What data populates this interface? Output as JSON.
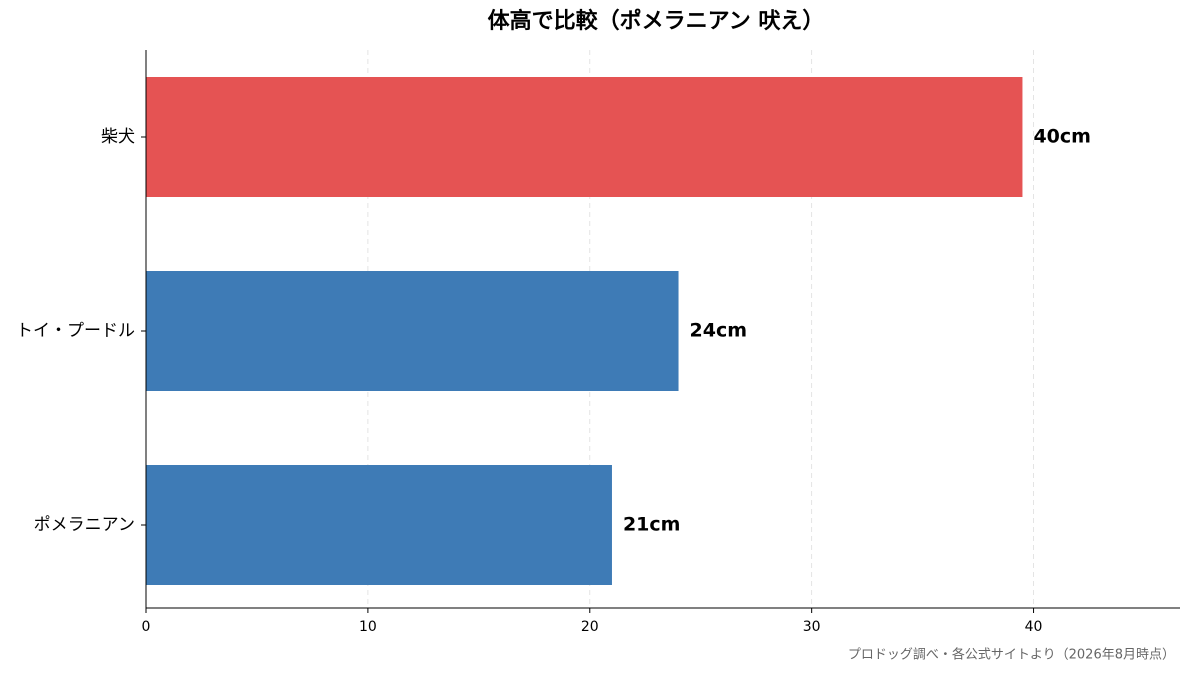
{
  "chart_data": {
    "type": "barh",
    "title": "体高で比較（ポメラニアン 吠え）",
    "categories": [
      "柴犬",
      "トイ・プードル",
      "ポメラニアン"
    ],
    "values": [
      39.5,
      24,
      21
    ],
    "value_labels": [
      "40cm",
      "24cm",
      "21cm"
    ],
    "colors": [
      "#e55353",
      "#3e7bb6",
      "#3e7bb6"
    ],
    "xlim": [
      0,
      46.6
    ],
    "xticks": [
      0,
      10,
      20,
      30,
      40
    ],
    "grid": true,
    "footnote": "プロドッグ調べ・各公式サイトより（2026年8月時点）"
  }
}
